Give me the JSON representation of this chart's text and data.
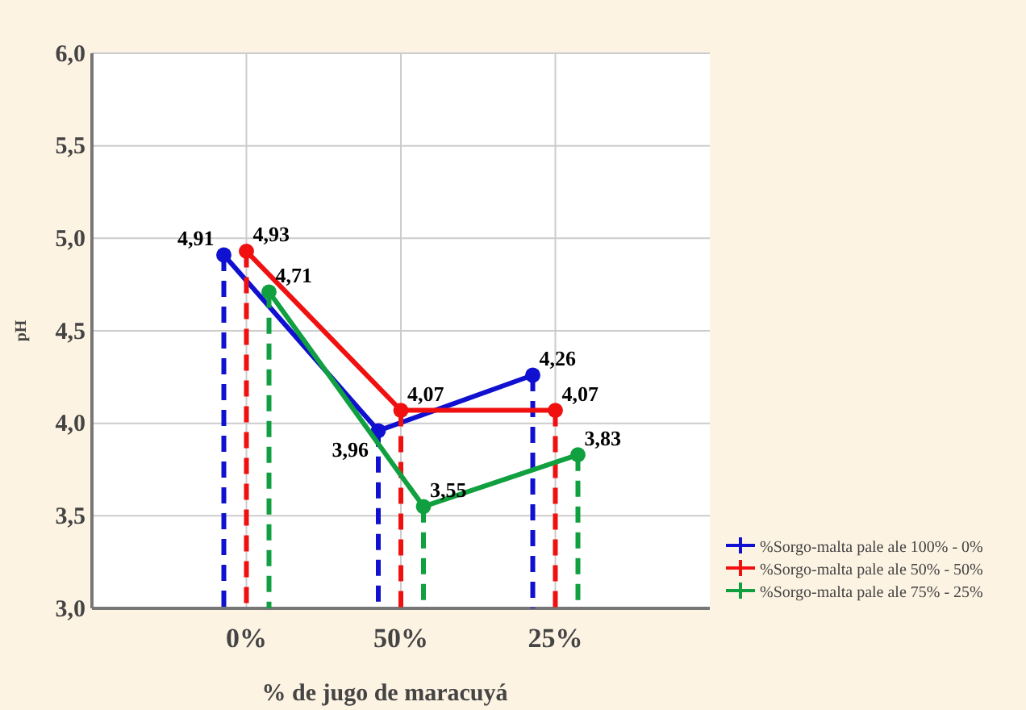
{
  "chart_data": {
    "type": "line",
    "xlabel": "% de jugo de maracuyá",
    "ylabel": "pH",
    "categories": [
      "0%",
      "50%",
      "25%"
    ],
    "series": [
      {
        "name": "%Sorgo-malta pale ale 100% - 0%",
        "color": "#1010d0",
        "values": [
          4.91,
          3.96,
          4.26
        ],
        "value_labels": [
          "4,91",
          "3,96",
          "4,26"
        ]
      },
      {
        "name": "%Sorgo-malta pale ale 50% - 50%",
        "color": "#f01010",
        "values": [
          4.93,
          4.07,
          4.07
        ],
        "value_labels": [
          "4,93",
          "4,07",
          "4,07"
        ]
      },
      {
        "name": "%Sorgo-malta pale ale 75% - 25%",
        "color": "#10a040",
        "values": [
          4.71,
          3.55,
          3.83
        ],
        "value_labels": [
          "4,71",
          "3,55",
          "3,83"
        ]
      }
    ],
    "ylim": [
      3,
      6
    ],
    "yticks": [
      {
        "value": 3,
        "label": "3,0"
      },
      {
        "value": 3.5,
        "label": "3,5"
      },
      {
        "value": 4,
        "label": "4,0"
      },
      {
        "value": 4.5,
        "label": "4,5"
      },
      {
        "value": 5,
        "label": "5,0"
      },
      {
        "value": 5.5,
        "label": "5,5"
      },
      {
        "value": 6,
        "label": "6,0"
      }
    ],
    "grid": true,
    "legend": "bottom right",
    "marker": "circle",
    "line_style": "solid"
  }
}
